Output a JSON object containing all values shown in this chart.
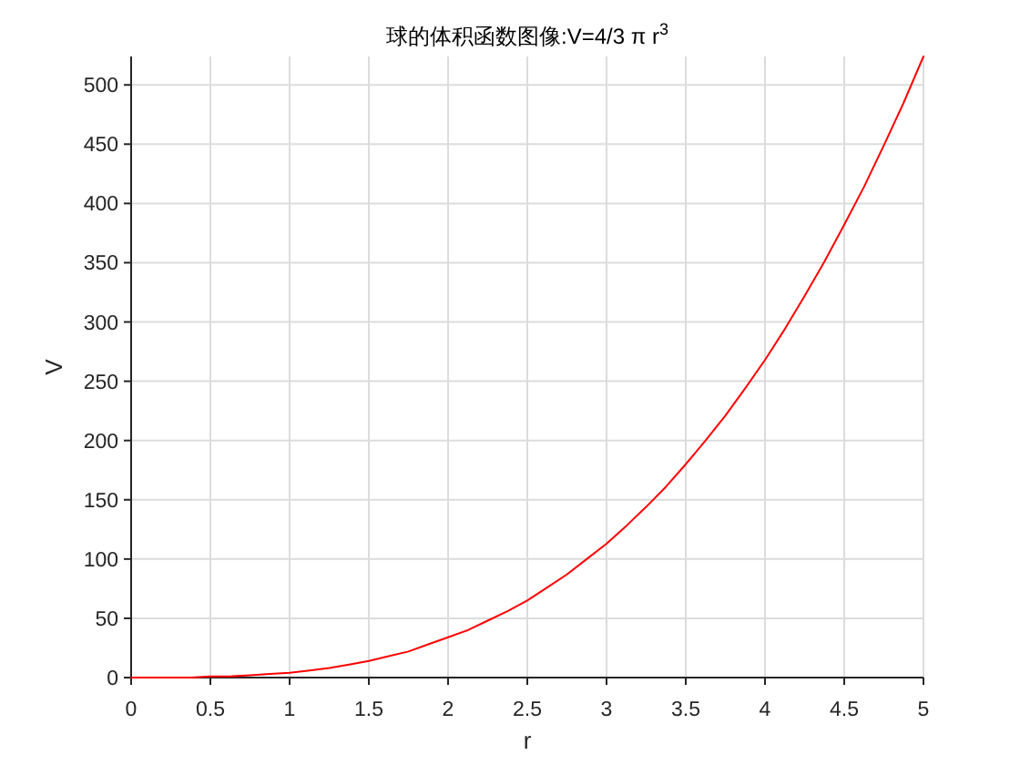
{
  "chart_data": {
    "type": "line",
    "title": "球的体积函数图像:V=4/3 π r$^{3}$",
    "xlabel": "r",
    "ylabel": "V",
    "x": [
      0,
      0.125,
      0.25,
      0.375,
      0.5,
      0.625,
      0.75,
      0.875,
      1,
      1.125,
      1.25,
      1.375,
      1.5,
      1.625,
      1.75,
      1.875,
      2,
      2.125,
      2.25,
      2.375,
      2.5,
      2.625,
      2.75,
      2.875,
      3,
      3.125,
      3.25,
      3.375,
      3.5,
      3.625,
      3.75,
      3.875,
      4,
      4.125,
      4.25,
      4.375,
      4.5,
      4.625,
      4.75,
      4.875,
      5
    ],
    "series": [
      {
        "color": "#ff0000",
        "values": [
          0,
          0,
          0,
          0,
          1,
          1,
          2,
          3,
          4,
          6,
          8,
          11,
          14,
          18,
          22,
          28,
          34,
          40,
          48,
          56,
          65,
          76,
          87,
          100,
          113,
          128,
          144,
          161,
          180,
          200,
          221,
          244,
          268,
          294,
          322,
          351,
          382,
          414,
          449,
          485,
          524
        ]
      }
    ],
    "xlim": [
      0,
      5
    ],
    "ylim": [
      0,
      524
    ],
    "xticks": [
      0,
      0.5,
      1,
      1.5,
      2,
      2.5,
      3,
      3.5,
      4,
      4.5,
      5
    ],
    "yticks": [
      0,
      50,
      100,
      150,
      200,
      250,
      300,
      350,
      400,
      450,
      500
    ],
    "grid": true
  }
}
